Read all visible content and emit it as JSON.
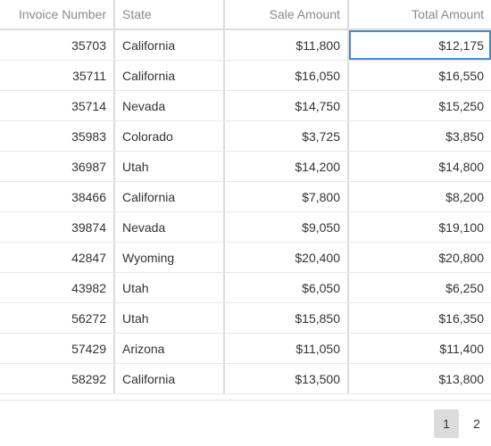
{
  "columns": {
    "invoice": "Invoice Number",
    "state": "State",
    "sale": "Sale Amount",
    "total": "Total Amount"
  },
  "rows": [
    {
      "invoice": "35703",
      "state": "California",
      "sale": "$11,800",
      "total": "$12,175"
    },
    {
      "invoice": "35711",
      "state": "California",
      "sale": "$16,050",
      "total": "$16,550"
    },
    {
      "invoice": "35714",
      "state": "Nevada",
      "sale": "$14,750",
      "total": "$15,250"
    },
    {
      "invoice": "35983",
      "state": "Colorado",
      "sale": "$3,725",
      "total": "$3,850"
    },
    {
      "invoice": "36987",
      "state": "Utah",
      "sale": "$14,200",
      "total": "$14,800"
    },
    {
      "invoice": "38466",
      "state": "California",
      "sale": "$7,800",
      "total": "$8,200"
    },
    {
      "invoice": "39874",
      "state": "Nevada",
      "sale": "$9,050",
      "total": "$19,100"
    },
    {
      "invoice": "42847",
      "state": "Wyoming",
      "sale": "$20,400",
      "total": "$20,800"
    },
    {
      "invoice": "43982",
      "state": "Utah",
      "sale": "$6,050",
      "total": "$6,250"
    },
    {
      "invoice": "56272",
      "state": "Utah",
      "sale": "$15,850",
      "total": "$16,350"
    },
    {
      "invoice": "57429",
      "state": "Arizona",
      "sale": "$11,050",
      "total": "$11,400"
    },
    {
      "invoice": "58292",
      "state": "California",
      "sale": "$13,500",
      "total": "$13,800"
    }
  ],
  "pagination": {
    "pages": [
      "1",
      "2"
    ],
    "current": "1"
  },
  "colors": {
    "focus_border": "#4a8ac9",
    "header_text": "#8a8a8a",
    "active_page_bg": "#dcdcdc"
  }
}
